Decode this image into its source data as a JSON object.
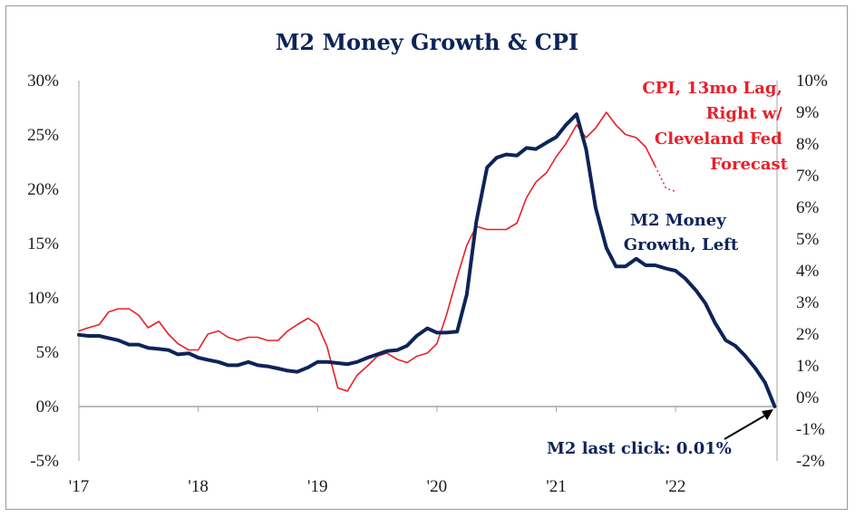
{
  "chart_data": {
    "type": "line",
    "title": "M2 Money Growth & CPI",
    "x_ticks": [
      "'17",
      "'18",
      "'19",
      "'20",
      "'21",
      "'22"
    ],
    "x_range": [
      2017.0,
      2022.85
    ],
    "y_left": {
      "ticks": [
        "30%",
        "25%",
        "20%",
        "15%",
        "10%",
        "5%",
        "0%",
        "-5%"
      ],
      "range": [
        -5,
        30
      ]
    },
    "y_right": {
      "ticks": [
        "10%",
        "9%",
        "8%",
        "7%",
        "6%",
        "5%",
        "4%",
        "3%",
        "2%",
        "1%",
        "0%",
        "-1%",
        "-2%"
      ],
      "range": [
        -2,
        10
      ]
    },
    "grid": false,
    "series": [
      {
        "name": "M2 Money Growth, Left",
        "label_lines": [
          "M2 Money",
          "Growth, Left"
        ],
        "axis": "left",
        "color": "#0d2459",
        "x": [
          2017.0,
          2017.08,
          2017.17,
          2017.25,
          2017.33,
          2017.42,
          2017.5,
          2017.58,
          2017.67,
          2017.75,
          2017.83,
          2017.92,
          2018.0,
          2018.08,
          2018.17,
          2018.25,
          2018.33,
          2018.42,
          2018.5,
          2018.58,
          2018.67,
          2018.75,
          2018.83,
          2018.92,
          2019.0,
          2019.08,
          2019.17,
          2019.25,
          2019.33,
          2019.42,
          2019.5,
          2019.58,
          2019.67,
          2019.75,
          2019.83,
          2019.92,
          2020.0,
          2020.08,
          2020.17,
          2020.25,
          2020.33,
          2020.42,
          2020.5,
          2020.58,
          2020.67,
          2020.75,
          2020.83,
          2020.92,
          2021.0,
          2021.08,
          2021.17,
          2021.25,
          2021.33,
          2021.42,
          2021.5,
          2021.58,
          2021.67,
          2021.75,
          2021.83,
          2021.92,
          2022.0,
          2022.08,
          2022.17,
          2022.25,
          2022.33,
          2022.42,
          2022.5,
          2022.58,
          2022.67,
          2022.75,
          2022.83
        ],
        "values": [
          6.6,
          6.5,
          6.5,
          6.3,
          6.1,
          5.7,
          5.7,
          5.4,
          5.3,
          5.2,
          4.8,
          4.9,
          4.5,
          4.3,
          4.1,
          3.8,
          3.8,
          4.1,
          3.8,
          3.7,
          3.5,
          3.3,
          3.2,
          3.6,
          4.1,
          4.1,
          4.0,
          3.9,
          4.1,
          4.5,
          4.8,
          5.1,
          5.2,
          5.6,
          6.5,
          7.2,
          6.8,
          6.8,
          6.9,
          10.3,
          17.0,
          22.0,
          22.9,
          23.2,
          23.1,
          23.8,
          23.7,
          24.3,
          24.8,
          25.9,
          26.9,
          23.7,
          18.3,
          14.6,
          12.9,
          12.9,
          13.6,
          13.0,
          13.0,
          12.7,
          12.5,
          11.8,
          10.7,
          9.5,
          7.7,
          6.1,
          5.6,
          4.7,
          3.5,
          2.2,
          0.01
        ]
      },
      {
        "name": "CPI, 13mo Lag, Right w/ Cleveland Fed Forecast",
        "label_lines": [
          "CPI, 13mo Lag,",
          "Right w/",
          "Cleveland Fed",
          "Forecast"
        ],
        "axis": "right",
        "color": "#e8202a",
        "x": [
          2017.0,
          2017.08,
          2017.17,
          2017.25,
          2017.33,
          2017.42,
          2017.5,
          2017.58,
          2017.67,
          2017.75,
          2017.83,
          2017.92,
          2018.0,
          2018.08,
          2018.17,
          2018.25,
          2018.33,
          2018.42,
          2018.5,
          2018.58,
          2018.67,
          2018.75,
          2018.83,
          2018.92,
          2019.0,
          2019.08,
          2019.17,
          2019.25,
          2019.33,
          2019.42,
          2019.5,
          2019.58,
          2019.67,
          2019.75,
          2019.83,
          2019.92,
          2020.0,
          2020.08,
          2020.17,
          2020.25,
          2020.33,
          2020.42,
          2020.5,
          2020.58,
          2020.67,
          2020.75,
          2020.83,
          2020.92,
          2021.0,
          2021.08,
          2021.17,
          2021.25,
          2021.33,
          2021.42,
          2021.5,
          2021.58,
          2021.67,
          2021.75,
          2021.83
        ],
        "values": [
          2.1,
          2.2,
          2.3,
          2.7,
          2.8,
          2.8,
          2.6,
          2.2,
          2.4,
          2.0,
          1.7,
          1.5,
          1.5,
          2.0,
          2.1,
          1.9,
          1.8,
          1.9,
          1.9,
          1.8,
          1.8,
          2.1,
          2.3,
          2.5,
          2.3,
          1.6,
          0.3,
          0.2,
          0.7,
          1.0,
          1.3,
          1.4,
          1.2,
          1.1,
          1.3,
          1.4,
          1.7,
          2.6,
          3.8,
          4.8,
          5.4,
          5.3,
          5.3,
          5.3,
          5.5,
          6.3,
          6.8,
          7.1,
          7.6,
          8.0,
          8.6,
          8.2,
          8.5,
          9.0,
          8.6,
          8.3,
          8.2,
          7.9,
          7.3
        ],
        "forecast_x": [
          2021.83,
          2021.92,
          2022.0
        ],
        "forecast_values": [
          7.3,
          6.6,
          6.5
        ]
      }
    ],
    "annotations": {
      "m2_last": "M2 last click: 0.01%"
    }
  }
}
